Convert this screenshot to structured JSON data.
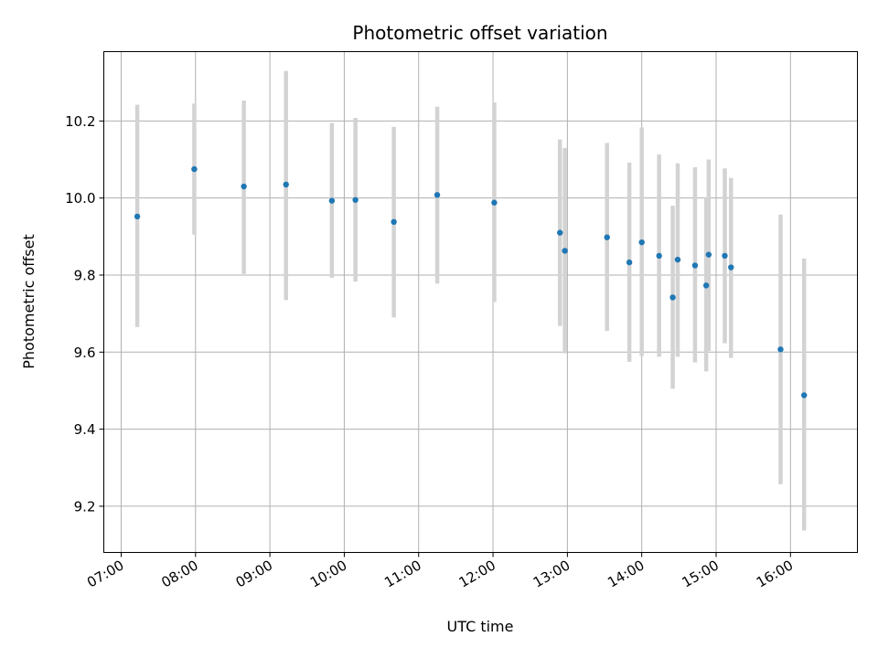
{
  "chart_data": {
    "type": "scatter",
    "title": "Photometric offset variation",
    "xlabel": "UTC time",
    "ylabel": "Photometric offset",
    "x_ticks": [
      "07:00",
      "08:00",
      "09:00",
      "10:00",
      "11:00",
      "12:00",
      "13:00",
      "14:00",
      "15:00",
      "16:00"
    ],
    "y_ticks": [
      "9.2",
      "9.4",
      "9.6",
      "9.8",
      "10.0",
      "10.2"
    ],
    "xlim": [
      "06:46",
      "16:54"
    ],
    "ylim": [
      9.08,
      10.38
    ],
    "grid": true,
    "colors": {
      "point": "#1f77b4",
      "errorbar": "#d3d3d3",
      "grid": "#b0b0b0"
    },
    "points": [
      {
        "t": "07:13",
        "y": 9.952,
        "err_low": 9.665,
        "err_high": 10.242
      },
      {
        "t": "07:59",
        "y": 10.075,
        "err_low": 9.905,
        "err_high": 10.245
      },
      {
        "t": "08:39",
        "y": 10.03,
        "err_low": 9.803,
        "err_high": 10.253
      },
      {
        "t": "09:13",
        "y": 10.035,
        "err_low": 9.735,
        "err_high": 10.33
      },
      {
        "t": "09:50",
        "y": 9.993,
        "err_low": 9.793,
        "err_high": 10.195
      },
      {
        "t": "10:09",
        "y": 9.995,
        "err_low": 9.783,
        "err_high": 10.208
      },
      {
        "t": "10:40",
        "y": 9.938,
        "err_low": 9.69,
        "err_high": 10.185
      },
      {
        "t": "11:15",
        "y": 10.008,
        "err_low": 9.778,
        "err_high": 10.237
      },
      {
        "t": "12:01",
        "y": 9.988,
        "err_low": 9.73,
        "err_high": 10.248
      },
      {
        "t": "12:54",
        "y": 9.91,
        "err_low": 9.668,
        "err_high": 10.152
      },
      {
        "t": "12:58",
        "y": 9.863,
        "err_low": 9.597,
        "err_high": 10.13
      },
      {
        "t": "13:32",
        "y": 9.898,
        "err_low": 9.655,
        "err_high": 10.143
      },
      {
        "t": "13:50",
        "y": 9.833,
        "err_low": 9.575,
        "err_high": 10.092
      },
      {
        "t": "14:00",
        "y": 9.885,
        "err_low": 9.59,
        "err_high": 10.183
      },
      {
        "t": "14:14",
        "y": 9.85,
        "err_low": 9.588,
        "err_high": 10.113
      },
      {
        "t": "14:25",
        "y": 9.742,
        "err_low": 9.505,
        "err_high": 9.98
      },
      {
        "t": "14:29",
        "y": 9.84,
        "err_low": 9.588,
        "err_high": 10.09
      },
      {
        "t": "14:43",
        "y": 9.825,
        "err_low": 9.573,
        "err_high": 10.08
      },
      {
        "t": "14:52",
        "y": 9.773,
        "err_low": 9.55,
        "err_high": 10.0
      },
      {
        "t": "14:54",
        "y": 9.853,
        "err_low": 9.603,
        "err_high": 10.1
      },
      {
        "t": "15:07",
        "y": 9.85,
        "err_low": 9.623,
        "err_high": 10.077
      },
      {
        "t": "15:12",
        "y": 9.82,
        "err_low": 9.585,
        "err_high": 10.052
      },
      {
        "t": "15:52",
        "y": 9.607,
        "err_low": 9.257,
        "err_high": 9.957
      },
      {
        "t": "16:11",
        "y": 9.488,
        "err_low": 9.137,
        "err_high": 9.843
      }
    ]
  }
}
